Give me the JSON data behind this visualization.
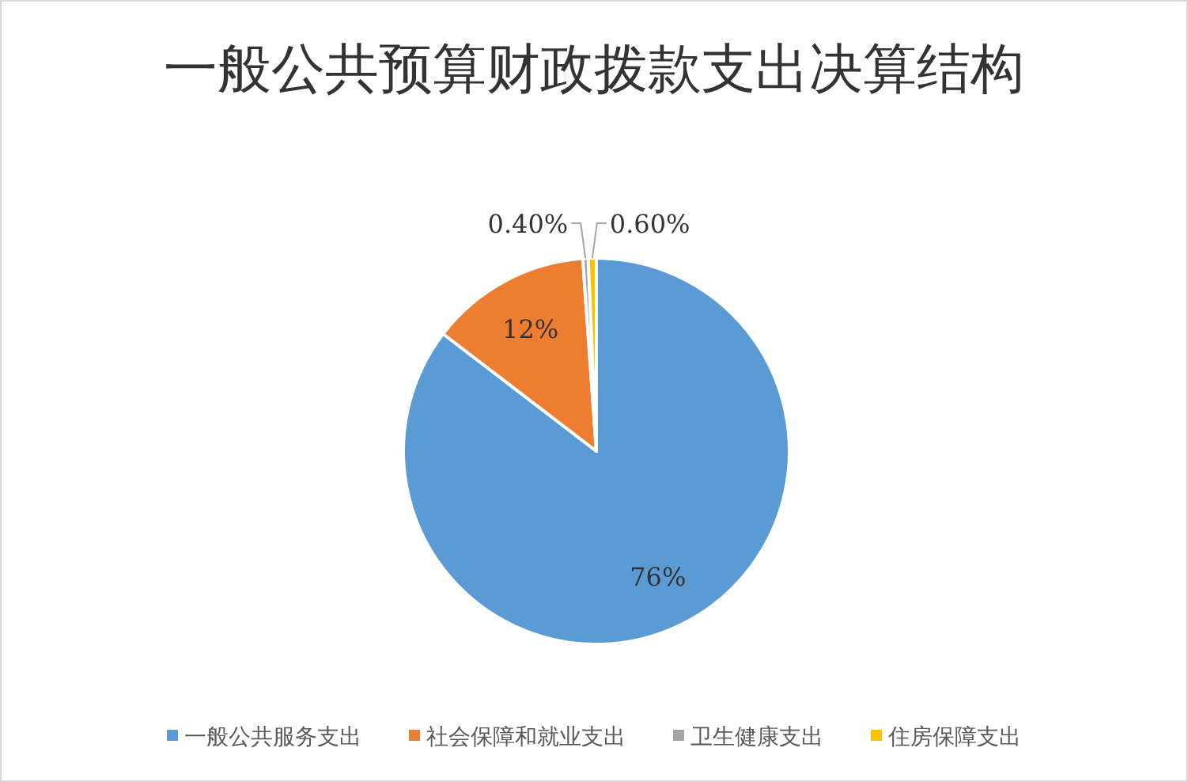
{
  "chart_data": {
    "type": "pie",
    "title": "一般公共预算财政拨款支出决算结构",
    "categories": [
      "一般公共服务支出",
      "社会保障和就业支出",
      "卫生健康支出",
      "住房保障支出"
    ],
    "values": [
      76,
      12,
      0.4,
      0.6
    ],
    "value_labels": [
      "76%",
      "12%",
      "0.40%",
      "0.60%"
    ],
    "colors": [
      "#5b9bd5",
      "#ed7d31",
      "#a5a5a5",
      "#ffc000"
    ],
    "legend": "bottom"
  }
}
